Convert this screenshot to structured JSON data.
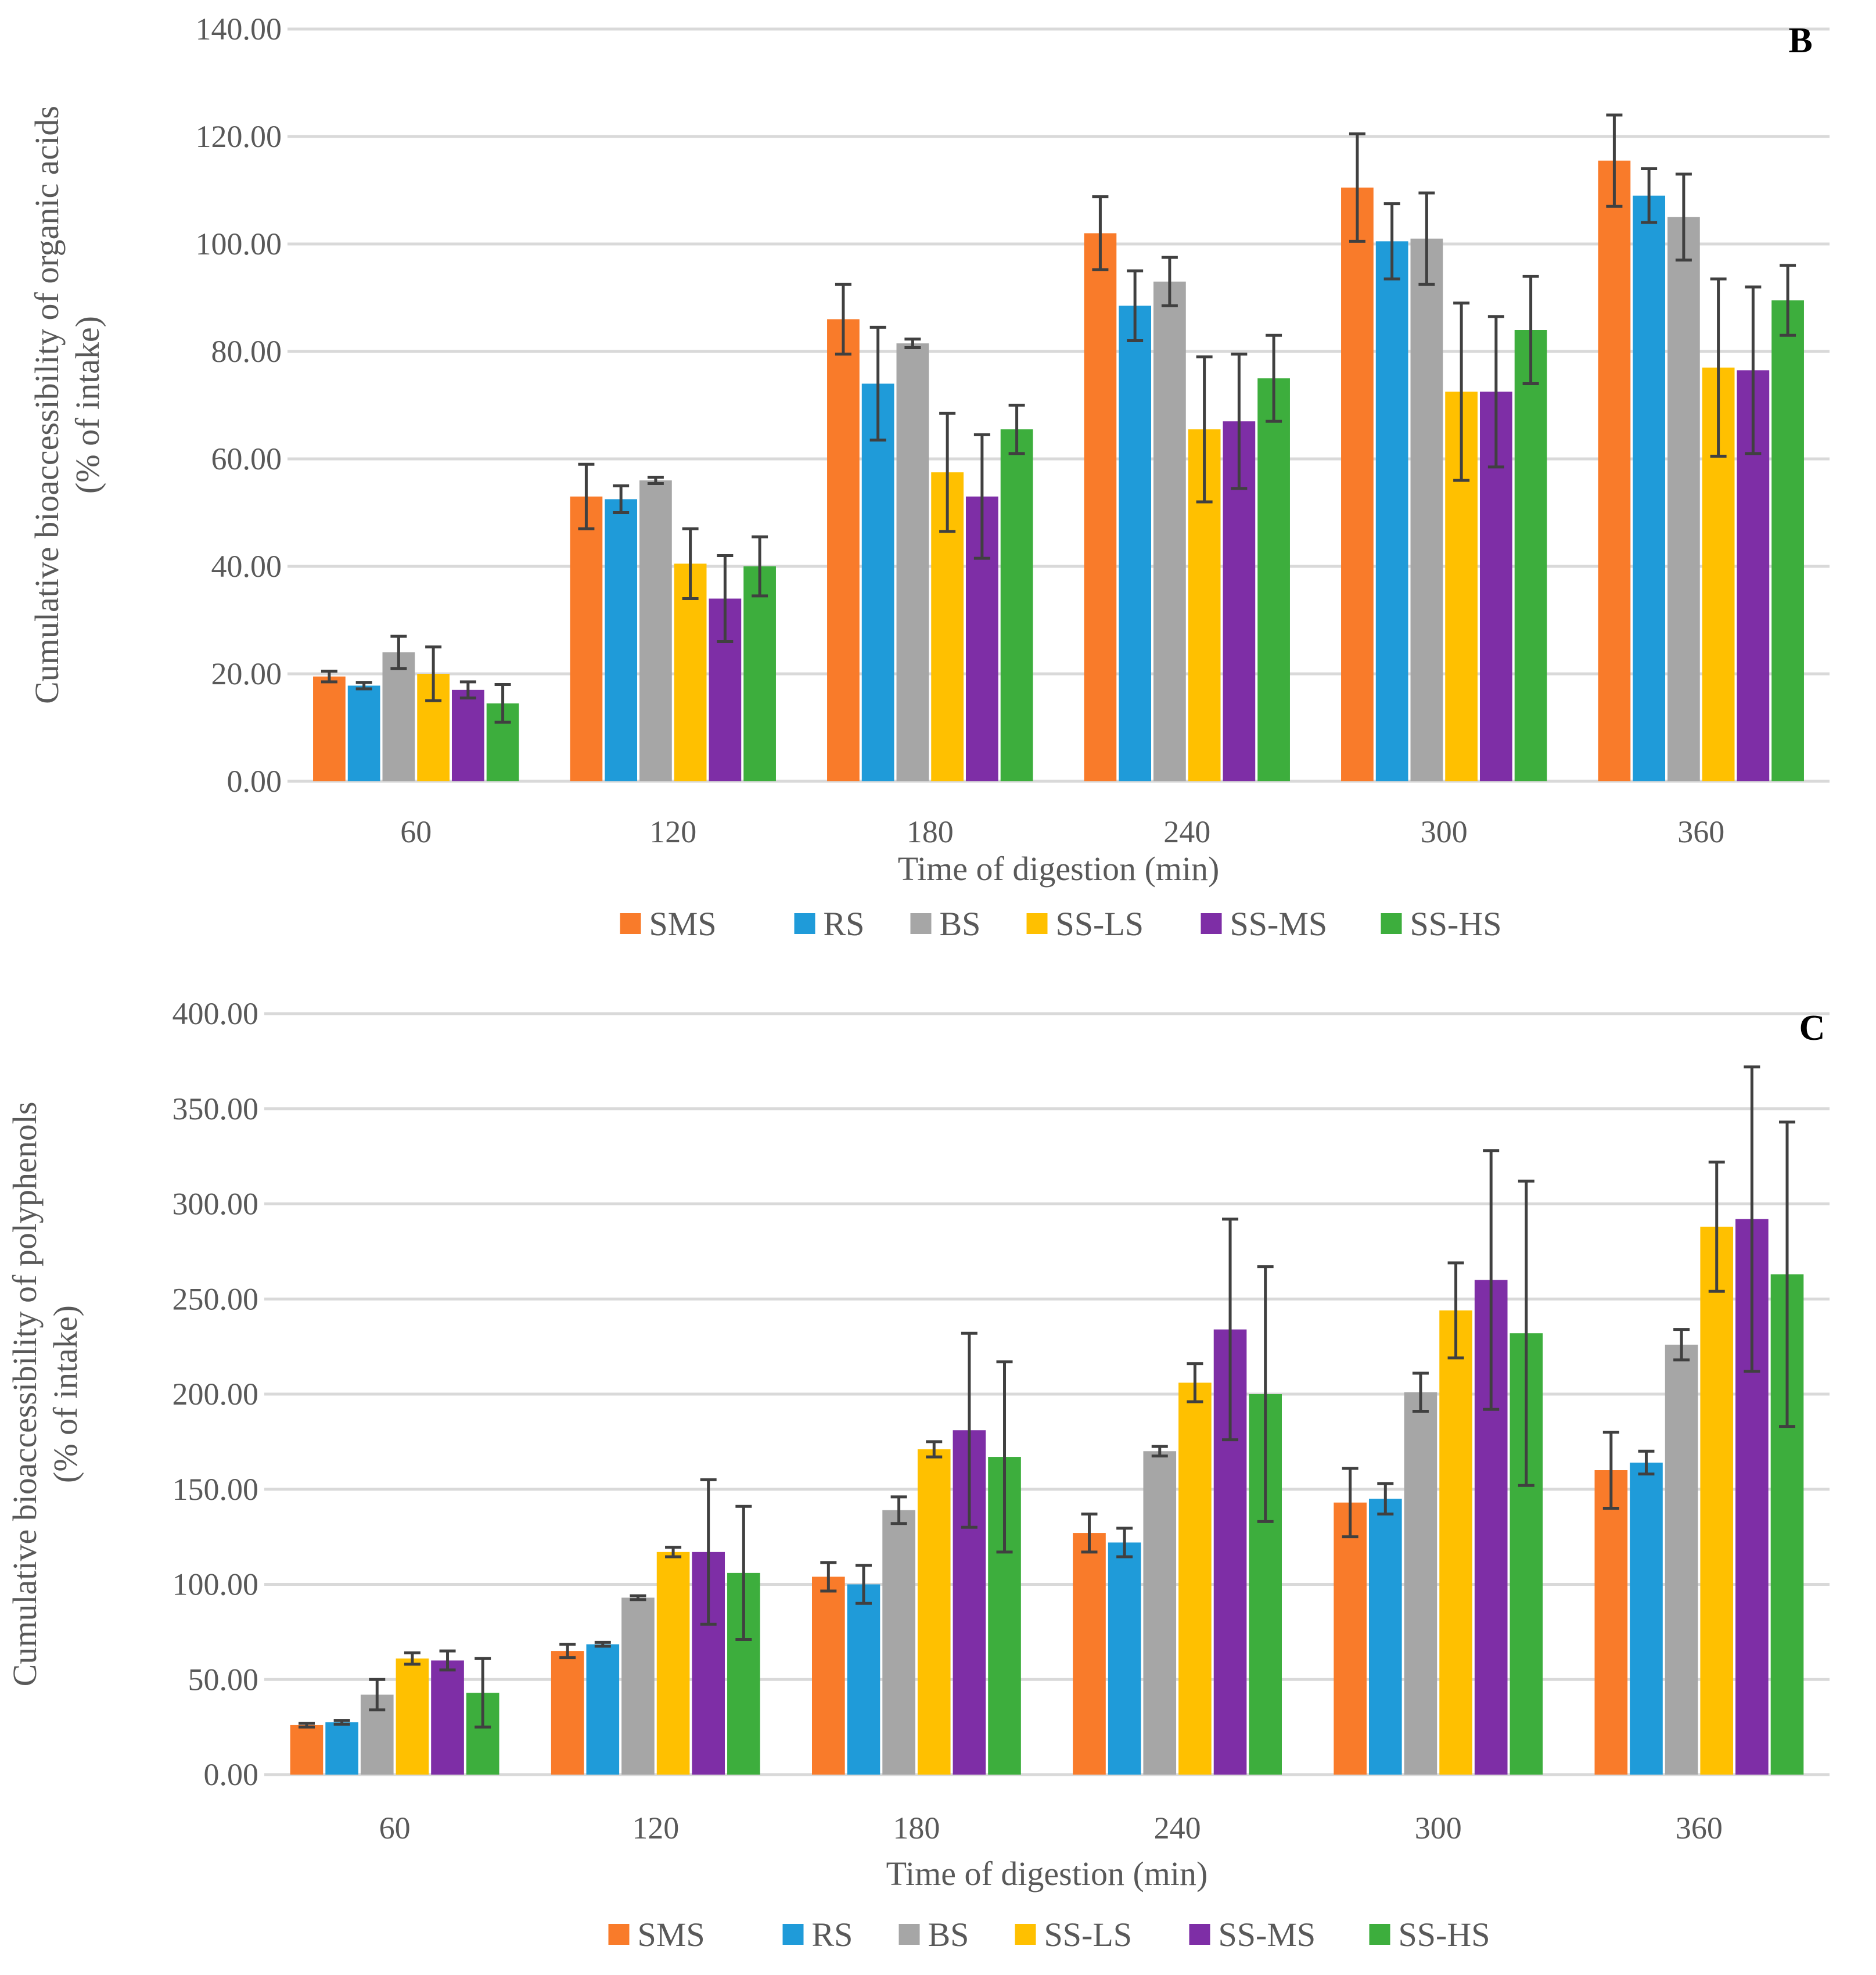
{
  "colors": {
    "SMS": "#F97B2A",
    "RS": "#1F9BD9",
    "BS": "#A6A6A6",
    "SS-LS": "#FFC000",
    "SS-MS": "#7E2EA6",
    "SS-HS": "#3DAE3D"
  },
  "chart_data": [
    {
      "type": "bar",
      "panel": "B",
      "title": "",
      "xlabel": "Time of digestion (min)",
      "ylabel_line1": "Cumulative bioaccessibility of organic acids",
      "ylabel_line2": "(% of intake)",
      "ylim": [
        0,
        140
      ],
      "yticks": [
        "0.00",
        "20.00",
        "40.00",
        "60.00",
        "80.00",
        "100.00",
        "120.00",
        "140.00"
      ],
      "categories": [
        "60",
        "120",
        "180",
        "240",
        "300",
        "360"
      ],
      "legend_position": "bottom",
      "grid": true,
      "series": [
        {
          "name": "SMS",
          "values": [
            19.5,
            53.0,
            86.0,
            102.0,
            110.5,
            115.5
          ],
          "errors": [
            1.0,
            6.0,
            6.5,
            6.8,
            10.0,
            8.5
          ]
        },
        {
          "name": "RS",
          "values": [
            17.8,
            52.5,
            74.0,
            88.5,
            100.5,
            109.0
          ],
          "errors": [
            0.6,
            2.5,
            10.5,
            6.5,
            7.0,
            5.0
          ]
        },
        {
          "name": "BS",
          "values": [
            24.0,
            56.0,
            81.5,
            93.0,
            101.0,
            105.0
          ],
          "errors": [
            3.0,
            0.6,
            0.8,
            4.5,
            8.5,
            8.0
          ]
        },
        {
          "name": "SS-LS",
          "values": [
            20.0,
            40.5,
            57.5,
            65.5,
            72.5,
            77.0
          ],
          "errors": [
            5.0,
            6.5,
            11.0,
            13.5,
            16.5,
            16.5
          ]
        },
        {
          "name": "SS-MS",
          "values": [
            17.0,
            34.0,
            53.0,
            67.0,
            72.5,
            76.5
          ],
          "errors": [
            1.5,
            8.0,
            11.5,
            12.5,
            14.0,
            15.5
          ]
        },
        {
          "name": "SS-HS",
          "values": [
            14.5,
            40.0,
            65.5,
            75.0,
            84.0,
            89.5
          ],
          "errors": [
            3.5,
            5.5,
            4.5,
            8.0,
            10.0,
            6.5
          ]
        }
      ]
    },
    {
      "type": "bar",
      "panel": "C",
      "title": "",
      "xlabel": "Time of digestion (min)",
      "ylabel_line1": "Cumulative bioaccessibility of polyphenols",
      "ylabel_line2": "(% of intake)",
      "ylim": [
        0,
        400
      ],
      "yticks": [
        "0.00",
        "50.00",
        "100.00",
        "150.00",
        "200.00",
        "250.00",
        "300.00",
        "350.00",
        "400.00"
      ],
      "categories": [
        "60",
        "120",
        "180",
        "240",
        "300",
        "360"
      ],
      "legend_position": "bottom",
      "grid": true,
      "series": [
        {
          "name": "SMS",
          "values": [
            26.0,
            65.0,
            104.0,
            127.0,
            143.0,
            160.0
          ],
          "errors": [
            1.0,
            3.5,
            7.5,
            10.0,
            18.0,
            20.0
          ]
        },
        {
          "name": "RS",
          "values": [
            27.5,
            68.5,
            100.0,
            122.0,
            145.0,
            164.0
          ],
          "errors": [
            1.0,
            1.0,
            10.0,
            7.5,
            8.0,
            6.0
          ]
        },
        {
          "name": "BS",
          "values": [
            42.0,
            93.0,
            139.0,
            170.0,
            201.0,
            226.0
          ],
          "errors": [
            8.0,
            1.0,
            7.0,
            2.5,
            10.0,
            8.0
          ]
        },
        {
          "name": "SS-LS",
          "values": [
            61.0,
            117.0,
            171.0,
            206.0,
            244.0,
            288.0
          ],
          "errors": [
            3.0,
            2.5,
            4.0,
            10.0,
            25.0,
            34.0
          ]
        },
        {
          "name": "SS-MS",
          "values": [
            60.0,
            117.0,
            181.0,
            234.0,
            260.0,
            292.0
          ],
          "errors": [
            5.0,
            38.0,
            51.0,
            58.0,
            68.0,
            80.0
          ]
        },
        {
          "name": "SS-HS",
          "values": [
            43.0,
            106.0,
            167.0,
            200.0,
            232.0,
            263.0
          ],
          "errors": [
            18.0,
            35.0,
            50.0,
            67.0,
            80.0,
            80.0
          ]
        }
      ]
    }
  ]
}
